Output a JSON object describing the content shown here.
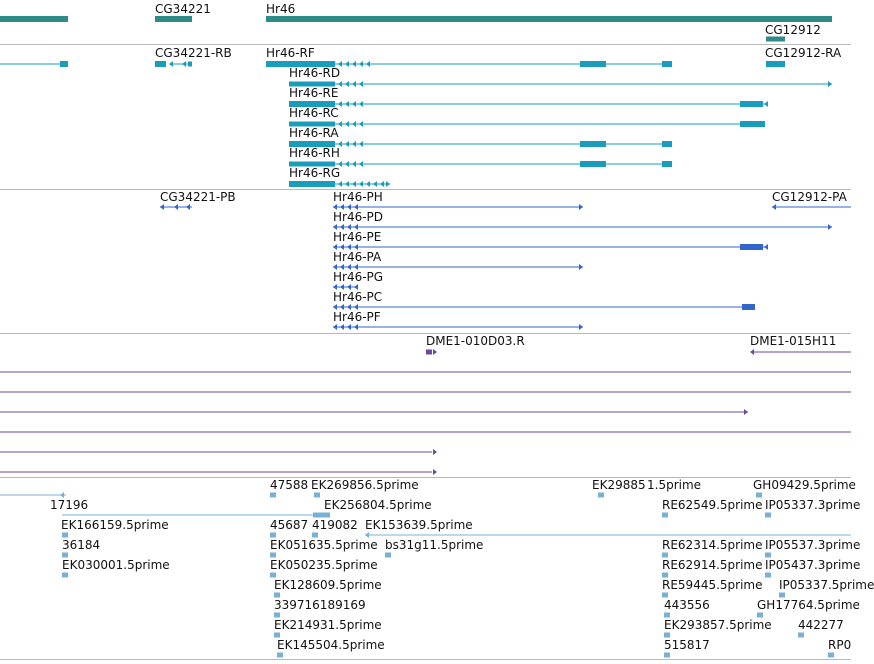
{
  "colors": {
    "genes": "#2e8b87",
    "transcripts": "#1a9cbb",
    "proteins": "#3366cc",
    "clones": "#6a4a9c",
    "ests": "#78b0d6",
    "separator": "#b8b8b8"
  },
  "tracks": {
    "genes": {
      "labels": [
        "CG34221",
        "Hr46",
        "CG12912"
      ]
    },
    "transcripts": {
      "labels": [
        "CG34221-RB",
        "Hr46-RF",
        "CG12912-RA",
        "Hr46-RD",
        "Hr46-RE",
        "Hr46-RC",
        "Hr46-RA",
        "Hr46-RH",
        "Hr46-RG"
      ]
    },
    "proteins": {
      "labels": [
        "CG34221-PB",
        "Hr46-PH",
        "CG12912-PA",
        "Hr46-PD",
        "Hr46-PE",
        "Hr46-PA",
        "Hr46-PG",
        "Hr46-PC",
        "Hr46-PF"
      ]
    },
    "clones": {
      "labels": [
        "DME1-010D03.R",
        "DME1-015H11"
      ]
    },
    "ests": {
      "labels": [
        "47588",
        "EK269856.5prime",
        "EK29885",
        "1.5prime",
        "GH09429.5prime",
        "17196",
        "EK256804.5prime",
        "RE62549.5prime",
        "IP05337.3prime",
        "EK166159.5prime",
        "45687",
        "419082",
        "EK153639.5prime",
        "36184",
        "EK051635.5prime",
        "bs31g11.5prime",
        "RE62314.5prime",
        "IP05537.3prime",
        "EK030001.5prime",
        "EK050235.5prime",
        "RE62914.5prime",
        "IP05437.3prime",
        "EK128609.5prime",
        "RE59445.5prime",
        "IP05337.5prime",
        "339716189169",
        "443556",
        "GH17764.5prime",
        "EK214931.5prime",
        "EK293857.5prime",
        "442277",
        "EK145504.5prime",
        "515817",
        "RP0"
      ]
    }
  }
}
